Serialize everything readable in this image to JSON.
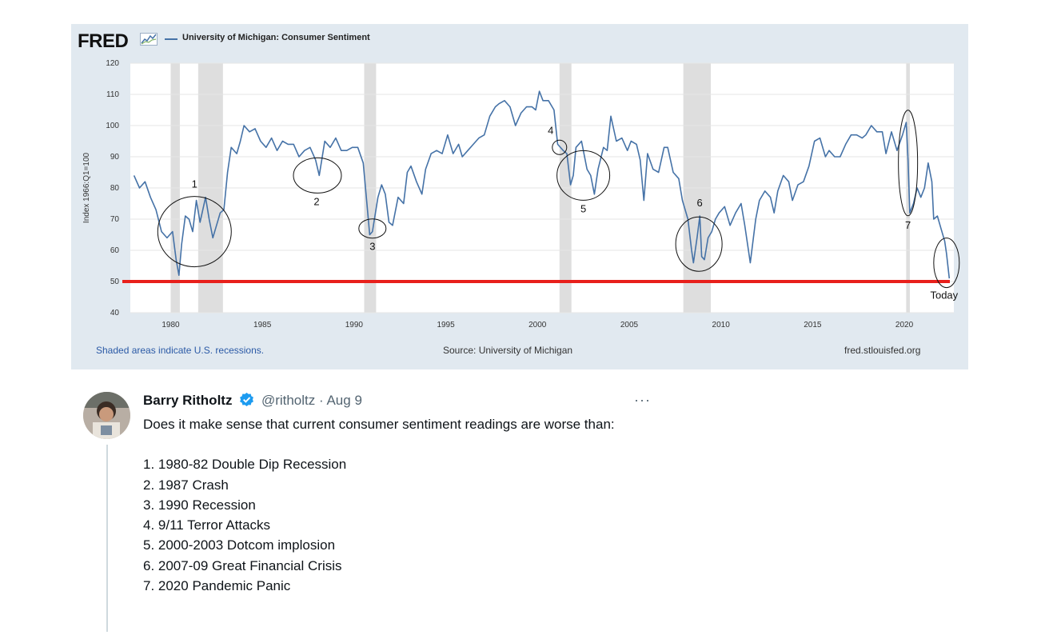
{
  "fred": {
    "logo_text": "FRED",
    "legend_label": "University of Michigan: Consumer Sentiment",
    "footer_recession_note": "Shaded areas indicate U.S. recessions.",
    "footer_source": "Source: University of Michigan",
    "footer_url": "fred.stlouisfed.org",
    "colors": {
      "line": "#4572a7",
      "background": "#e1e9f0",
      "plot": "#ffffff",
      "recession": "#dedede",
      "threshold": "#e8201b"
    }
  },
  "chart_data": {
    "type": "line",
    "title": "University of Michigan: Consumer Sentiment",
    "ylabel": "Index 1966:Q1=100",
    "xlabel": "",
    "xlim": [
      1977.8,
      2022.7
    ],
    "ylim": [
      40,
      120
    ],
    "x_ticks": [
      1980,
      1985,
      1990,
      1995,
      2000,
      2005,
      2010,
      2015,
      2020
    ],
    "y_ticks": [
      40,
      50,
      60,
      70,
      80,
      90,
      100,
      110,
      120
    ],
    "recessions": [
      [
        1980.0,
        1980.5
      ],
      [
        1981.5,
        1982.85
      ],
      [
        1990.55,
        1991.2
      ],
      [
        2001.2,
        2001.85
      ],
      [
        2007.95,
        2009.45
      ],
      [
        2020.1,
        2020.3
      ]
    ],
    "series": [
      {
        "name": "University of Michigan: Consumer Sentiment",
        "points": [
          [
            1978.0,
            84
          ],
          [
            1978.3,
            80
          ],
          [
            1978.6,
            82
          ],
          [
            1978.9,
            77
          ],
          [
            1979.2,
            73
          ],
          [
            1979.5,
            66
          ],
          [
            1979.8,
            64
          ],
          [
            1980.1,
            66
          ],
          [
            1980.3,
            57
          ],
          [
            1980.45,
            52
          ],
          [
            1980.6,
            62
          ],
          [
            1980.8,
            71
          ],
          [
            1981.0,
            70
          ],
          [
            1981.2,
            66
          ],
          [
            1981.4,
            76
          ],
          [
            1981.6,
            69
          ],
          [
            1981.9,
            77
          ],
          [
            1982.1,
            70
          ],
          [
            1982.3,
            64
          ],
          [
            1982.5,
            68
          ],
          [
            1982.7,
            72
          ],
          [
            1982.9,
            73
          ],
          [
            1983.1,
            85
          ],
          [
            1983.3,
            93
          ],
          [
            1983.6,
            91
          ],
          [
            1983.8,
            95
          ],
          [
            1984.0,
            100
          ],
          [
            1984.3,
            98
          ],
          [
            1984.6,
            99
          ],
          [
            1984.9,
            95
          ],
          [
            1985.2,
            93
          ],
          [
            1985.5,
            96
          ],
          [
            1985.8,
            92
          ],
          [
            1986.1,
            95
          ],
          [
            1986.4,
            94
          ],
          [
            1986.7,
            94
          ],
          [
            1987.0,
            90
          ],
          [
            1987.3,
            92
          ],
          [
            1987.6,
            93
          ],
          [
            1987.9,
            89
          ],
          [
            1988.1,
            84
          ],
          [
            1988.4,
            95
          ],
          [
            1988.7,
            93
          ],
          [
            1989.0,
            96
          ],
          [
            1989.3,
            92
          ],
          [
            1989.6,
            92
          ],
          [
            1989.9,
            93
          ],
          [
            1990.2,
            93
          ],
          [
            1990.5,
            88
          ],
          [
            1990.7,
            75
          ],
          [
            1990.85,
            65
          ],
          [
            1991.0,
            66
          ],
          [
            1991.3,
            77
          ],
          [
            1991.5,
            81
          ],
          [
            1991.7,
            78
          ],
          [
            1991.9,
            69
          ],
          [
            1992.1,
            68
          ],
          [
            1992.4,
            77
          ],
          [
            1992.7,
            75
          ],
          [
            1992.9,
            85
          ],
          [
            1993.1,
            87
          ],
          [
            1993.4,
            82
          ],
          [
            1993.7,
            78
          ],
          [
            1993.9,
            86
          ],
          [
            1994.2,
            91
          ],
          [
            1994.5,
            92
          ],
          [
            1994.8,
            91
          ],
          [
            1995.1,
            97
          ],
          [
            1995.4,
            91
          ],
          [
            1995.7,
            94
          ],
          [
            1995.9,
            90
          ],
          [
            1996.2,
            92
          ],
          [
            1996.5,
            94
          ],
          [
            1996.8,
            96
          ],
          [
            1997.1,
            97
          ],
          [
            1997.4,
            103
          ],
          [
            1997.7,
            106
          ],
          [
            1997.9,
            107
          ],
          [
            1998.2,
            108
          ],
          [
            1998.5,
            106
          ],
          [
            1998.8,
            100
          ],
          [
            1999.1,
            104
          ],
          [
            1999.4,
            106
          ],
          [
            1999.7,
            106
          ],
          [
            1999.9,
            105
          ],
          [
            2000.1,
            111
          ],
          [
            2000.3,
            108
          ],
          [
            2000.6,
            108
          ],
          [
            2000.9,
            105
          ],
          [
            2001.1,
            94
          ],
          [
            2001.4,
            92
          ],
          [
            2001.6,
            91
          ],
          [
            2001.8,
            81
          ],
          [
            2001.95,
            84
          ],
          [
            2002.1,
            93
          ],
          [
            2002.4,
            95
          ],
          [
            2002.7,
            86
          ],
          [
            2002.9,
            84
          ],
          [
            2003.1,
            78
          ],
          [
            2003.3,
            86
          ],
          [
            2003.6,
            93
          ],
          [
            2003.8,
            92
          ],
          [
            2004.0,
            103
          ],
          [
            2004.3,
            95
          ],
          [
            2004.6,
            96
          ],
          [
            2004.9,
            92
          ],
          [
            2005.1,
            95
          ],
          [
            2005.4,
            94
          ],
          [
            2005.6,
            89
          ],
          [
            2005.8,
            76
          ],
          [
            2006.0,
            91
          ],
          [
            2006.3,
            86
          ],
          [
            2006.6,
            85
          ],
          [
            2006.9,
            93
          ],
          [
            2007.1,
            93
          ],
          [
            2007.4,
            85
          ],
          [
            2007.7,
            83
          ],
          [
            2007.9,
            76
          ],
          [
            2008.2,
            70
          ],
          [
            2008.4,
            60
          ],
          [
            2008.5,
            56
          ],
          [
            2008.7,
            64
          ],
          [
            2008.85,
            71
          ],
          [
            2008.95,
            58
          ],
          [
            2009.1,
            57
          ],
          [
            2009.3,
            64
          ],
          [
            2009.5,
            66
          ],
          [
            2009.7,
            70
          ],
          [
            2009.9,
            72
          ],
          [
            2010.2,
            74
          ],
          [
            2010.5,
            68
          ],
          [
            2010.8,
            72
          ],
          [
            2011.1,
            75
          ],
          [
            2011.3,
            68
          ],
          [
            2011.6,
            56
          ],
          [
            2011.9,
            70
          ],
          [
            2012.1,
            76
          ],
          [
            2012.4,
            79
          ],
          [
            2012.7,
            77
          ],
          [
            2012.9,
            72
          ],
          [
            2013.1,
            79
          ],
          [
            2013.4,
            84
          ],
          [
            2013.7,
            82
          ],
          [
            2013.9,
            76
          ],
          [
            2014.2,
            81
          ],
          [
            2014.5,
            82
          ],
          [
            2014.8,
            87
          ],
          [
            2015.1,
            95
          ],
          [
            2015.4,
            96
          ],
          [
            2015.7,
            90
          ],
          [
            2015.9,
            92
          ],
          [
            2016.2,
            90
          ],
          [
            2016.5,
            90
          ],
          [
            2016.8,
            94
          ],
          [
            2017.1,
            97
          ],
          [
            2017.4,
            97
          ],
          [
            2017.7,
            96
          ],
          [
            2017.9,
            97
          ],
          [
            2018.2,
            100
          ],
          [
            2018.5,
            98
          ],
          [
            2018.8,
            98
          ],
          [
            2019.0,
            91
          ],
          [
            2019.3,
            98
          ],
          [
            2019.6,
            92
          ],
          [
            2019.9,
            97
          ],
          [
            2020.1,
            101
          ],
          [
            2020.2,
            89
          ],
          [
            2020.3,
            72
          ],
          [
            2020.5,
            75
          ],
          [
            2020.7,
            80
          ],
          [
            2020.9,
            77
          ],
          [
            2021.1,
            80
          ],
          [
            2021.3,
            88
          ],
          [
            2021.5,
            82
          ],
          [
            2021.6,
            70
          ],
          [
            2021.8,
            71
          ],
          [
            2022.0,
            67
          ],
          [
            2022.2,
            63
          ],
          [
            2022.3,
            59
          ],
          [
            2022.45,
            51
          ]
        ]
      }
    ],
    "annotations": [
      {
        "label": "1",
        "x": 1981.3,
        "y": 66
      },
      {
        "label": "2",
        "x": 1988.0,
        "y": 84
      },
      {
        "label": "3",
        "x": 1991.0,
        "y": 67
      },
      {
        "label": "4",
        "x": 2001.2,
        "y": 93
      },
      {
        "label": "5",
        "x": 2002.5,
        "y": 84
      },
      {
        "label": "6",
        "x": 2008.8,
        "y": 62
      },
      {
        "label": "7",
        "x": 2020.2,
        "y": 88
      },
      {
        "label": "Today",
        "x": 2022.3,
        "y": 56
      }
    ],
    "threshold_line": {
      "y": 50
    }
  },
  "tweet": {
    "author_name": "Barry Ritholtz",
    "handle": "@ritholtz",
    "separator": "·",
    "date": "Aug 9",
    "more": "···",
    "intro": "Does it make sense that current consumer sentiment readings are worse than:",
    "list": [
      "1. 1980-82 Double Dip Recession",
      "2. 1987 Crash",
      "3. 1990 Recession",
      "4. 9/11 Terror Attacks",
      "5. 2000-2003 Dotcom implosion",
      "6. 2007-09 Great Financial Crisis",
      "7. 2020 Pandemic Panic"
    ]
  }
}
